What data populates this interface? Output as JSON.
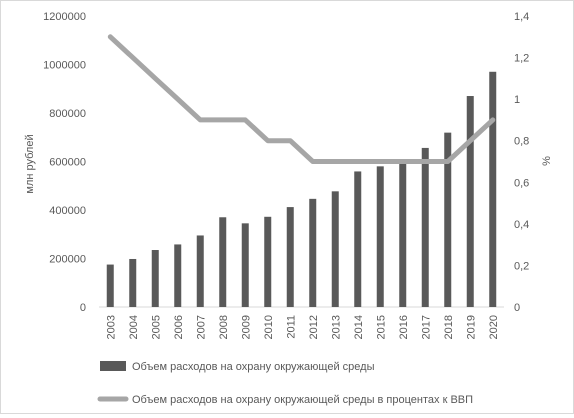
{
  "chart_data": {
    "type": "bar",
    "categories": [
      "2003",
      "2004",
      "2005",
      "2006",
      "2007",
      "2008",
      "2009",
      "2010",
      "2011",
      "2012",
      "2013",
      "2014",
      "2015",
      "2016",
      "2017",
      "2018",
      "2019",
      "2020"
    ],
    "series": [
      {
        "name": "Объем расходов на охрану окружающей среды",
        "type": "bar",
        "axis": "left",
        "color": "#595959",
        "values": [
          175000,
          198000,
          235000,
          258000,
          295000,
          370000,
          345000,
          372000,
          412000,
          446000,
          477000,
          559000,
          580000,
          592000,
          656000,
          719000,
          870000,
          970000
        ]
      },
      {
        "name": "Объем расходов на охрану окружающей среды в процентах к ВВП",
        "type": "line",
        "axis": "right",
        "color": "#a6a6a6",
        "values": [
          1.3,
          1.2,
          1.1,
          1.0,
          0.9,
          0.9,
          0.9,
          0.8,
          0.8,
          0.7,
          0.7,
          0.7,
          0.7,
          0.7,
          0.7,
          0.7,
          0.8,
          0.9
        ]
      }
    ],
    "ylabel": "млн рублей",
    "y2label": "%",
    "ylim": [
      0,
      1200000
    ],
    "y2lim": [
      0,
      1.4
    ],
    "yticks": [
      "0",
      "200000",
      "400000",
      "600000",
      "800000",
      "1000000",
      "1200000"
    ],
    "y2ticks": [
      "0",
      "0,2",
      "0,4",
      "0,6",
      "0,8",
      "1",
      "1,2",
      "1,4"
    ],
    "grid": false,
    "legend": "bottom"
  }
}
